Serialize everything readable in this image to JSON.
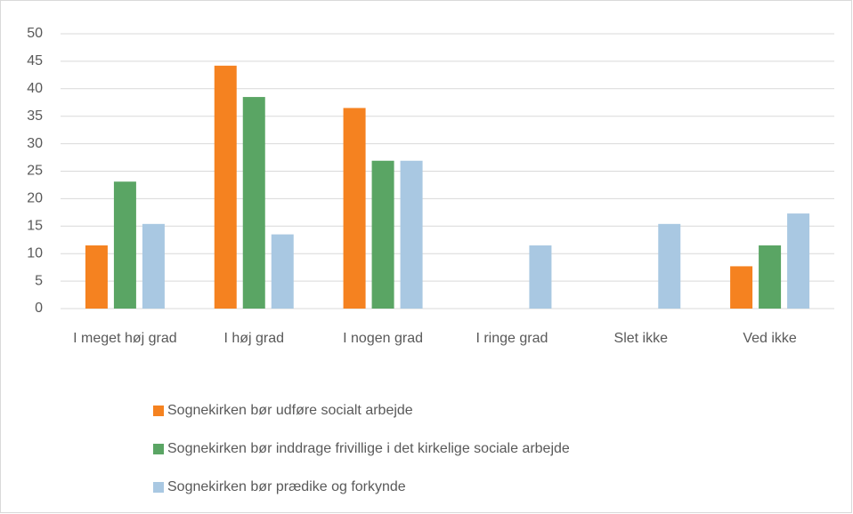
{
  "chart_data": {
    "type": "bar",
    "categories": [
      "I meget høj grad",
      "I høj grad",
      "I nogen grad",
      "I ringe grad",
      "Slet ikke",
      "Ved ikke"
    ],
    "series": [
      {
        "name": "Sognekirken bør udføre socialt arbejde",
        "color": "#f58220",
        "values": [
          11.5,
          44.2,
          36.5,
          0,
          0,
          7.7
        ]
      },
      {
        "name": "Sognekirken bør inddrage frivillige i det kirkelige sociale arbejde",
        "color": "#5aa564",
        "values": [
          23.1,
          38.5,
          26.9,
          0,
          0,
          11.5
        ]
      },
      {
        "name": "Sognekirken bør prædike og forkynde",
        "color": "#a9c8e2",
        "values": [
          15.4,
          13.5,
          26.9,
          11.5,
          15.4,
          17.3
        ]
      }
    ],
    "ylim": [
      0,
      50
    ],
    "yticks": [
      0,
      5,
      10,
      15,
      20,
      25,
      30,
      35,
      40,
      45,
      50
    ],
    "grid": true,
    "legend": "bottom"
  }
}
